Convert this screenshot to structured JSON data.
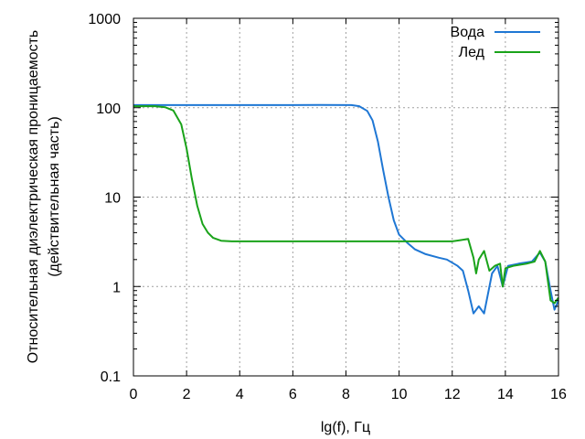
{
  "chart_data": {
    "type": "line",
    "xlabel": "lg(f), Гц",
    "ylabel_line1": "Относительная диэлектрическая проницаемость",
    "ylabel_line2": "(действительная часть)",
    "xlim": [
      0,
      16
    ],
    "ylim": [
      0.1,
      1000
    ],
    "yscale": "log",
    "grid": true,
    "legend_position": "top-right",
    "x_ticks": [
      "0",
      "2",
      "4",
      "6",
      "8",
      "10",
      "12",
      "14",
      "16"
    ],
    "y_ticks": [
      "0.1",
      "1",
      "10",
      "100",
      "1000"
    ],
    "series": [
      {
        "name": "Вода",
        "color": "#1f77d4",
        "points": [
          [
            0,
            107
          ],
          [
            2,
            107
          ],
          [
            4,
            107
          ],
          [
            6,
            107
          ],
          [
            7,
            107.5
          ],
          [
            8.2,
            107
          ],
          [
            8.5,
            104
          ],
          [
            8.8,
            92
          ],
          [
            9.0,
            72
          ],
          [
            9.2,
            42
          ],
          [
            9.4,
            20
          ],
          [
            9.6,
            10
          ],
          [
            9.8,
            5.5
          ],
          [
            10.0,
            3.8
          ],
          [
            10.3,
            3.1
          ],
          [
            10.6,
            2.6
          ],
          [
            11.0,
            2.3
          ],
          [
            11.5,
            2.1
          ],
          [
            11.8,
            2.0
          ],
          [
            12.2,
            1.7
          ],
          [
            12.4,
            1.5
          ],
          [
            12.6,
            0.9
          ],
          [
            12.8,
            0.5
          ],
          [
            13.0,
            0.6
          ],
          [
            13.2,
            0.5
          ],
          [
            13.5,
            1.4
          ],
          [
            13.7,
            1.7
          ],
          [
            13.9,
            1.0
          ],
          [
            14.1,
            1.7
          ],
          [
            14.5,
            1.8
          ],
          [
            15.0,
            1.9
          ],
          [
            15.3,
            2.4
          ],
          [
            15.5,
            1.9
          ],
          [
            15.7,
            0.9
          ],
          [
            15.85,
            0.55
          ],
          [
            16.0,
            0.7
          ]
        ]
      },
      {
        "name": "Лед",
        "color": "#1aa31a",
        "points": [
          [
            0,
            104
          ],
          [
            0.8,
            104
          ],
          [
            1.2,
            101
          ],
          [
            1.5,
            93
          ],
          [
            1.8,
            65
          ],
          [
            2.0,
            35
          ],
          [
            2.2,
            16
          ],
          [
            2.4,
            8
          ],
          [
            2.6,
            5
          ],
          [
            2.8,
            4
          ],
          [
            3.0,
            3.5
          ],
          [
            3.3,
            3.25
          ],
          [
            3.7,
            3.2
          ],
          [
            5,
            3.2
          ],
          [
            7,
            3.2
          ],
          [
            9,
            3.2
          ],
          [
            11,
            3.2
          ],
          [
            12,
            3.2
          ],
          [
            12.3,
            3.3
          ],
          [
            12.6,
            3.4
          ],
          [
            12.8,
            2.1
          ],
          [
            12.9,
            1.4
          ],
          [
            13.0,
            2.0
          ],
          [
            13.2,
            2.5
          ],
          [
            13.4,
            1.5
          ],
          [
            13.6,
            1.7
          ],
          [
            13.8,
            1.8
          ],
          [
            13.9,
            1.0
          ],
          [
            14.0,
            1.6
          ],
          [
            14.3,
            1.7
          ],
          [
            14.8,
            1.8
          ],
          [
            15.1,
            1.9
          ],
          [
            15.3,
            2.5
          ],
          [
            15.5,
            1.9
          ],
          [
            15.7,
            0.7
          ],
          [
            15.85,
            0.65
          ],
          [
            16.0,
            0.75
          ]
        ]
      }
    ]
  }
}
